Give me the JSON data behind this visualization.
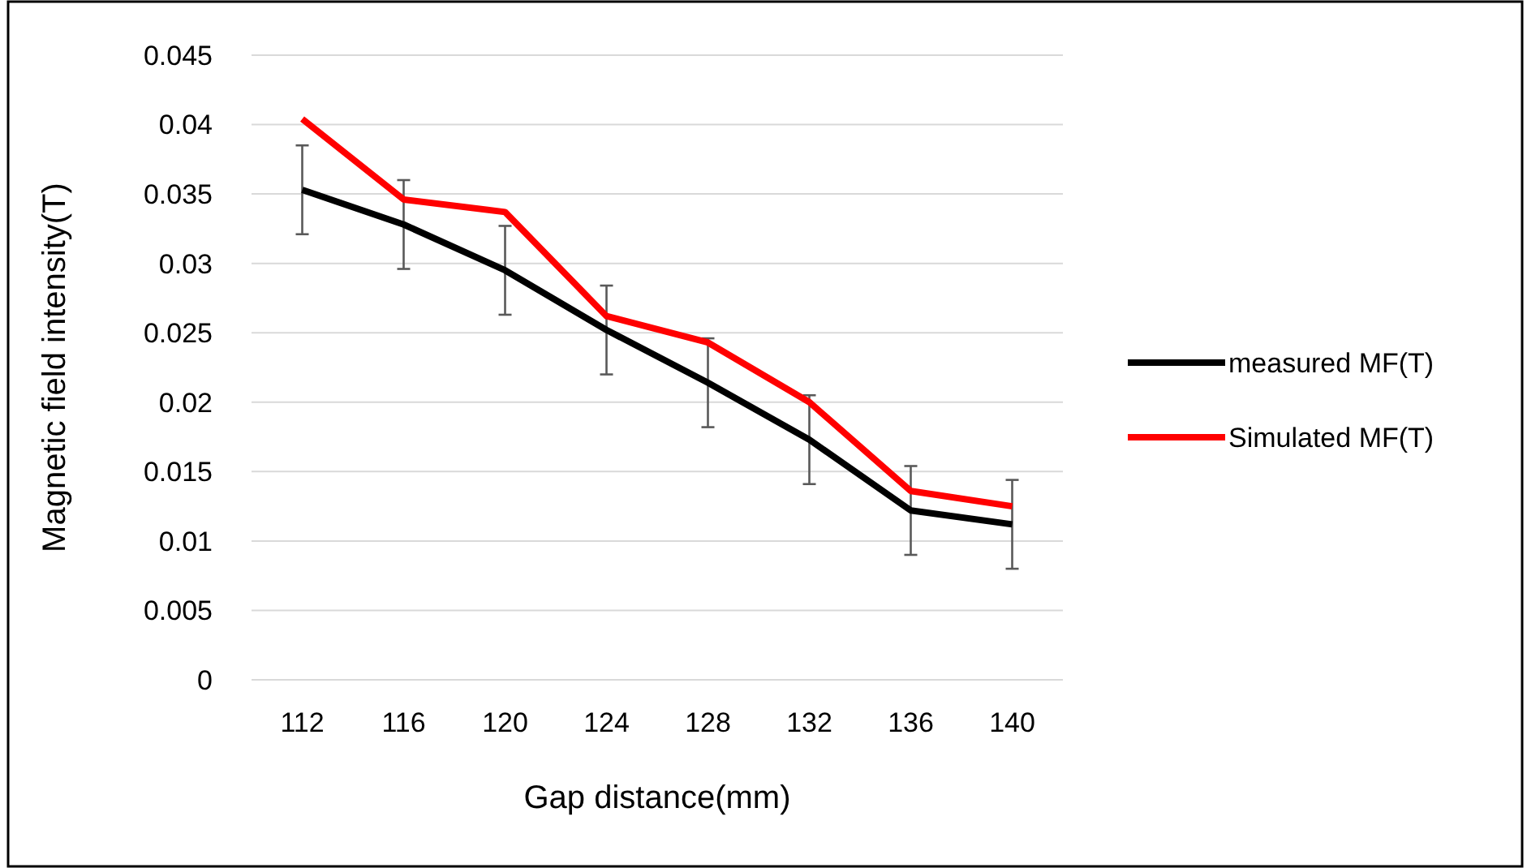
{
  "chart_data": {
    "type": "line",
    "xlabel": "Gap distance(mm)",
    "ylabel": "Magnetic field intensity(T)",
    "categories": [
      "112",
      "116",
      "120",
      "124",
      "128",
      "132",
      "136",
      "140"
    ],
    "series": [
      {
        "name": "measured MF(T)",
        "color": "#000000",
        "values": [
          0.0353,
          0.0328,
          0.0295,
          0.0252,
          0.0214,
          0.0173,
          0.0122,
          0.0112
        ],
        "errors": [
          0.0032,
          0.0032,
          0.0032,
          0.0032,
          0.0032,
          0.0032,
          0.0032,
          0.0032
        ]
      },
      {
        "name": "Simulated MF(T)",
        "color": "#ff0000",
        "values": [
          0.0404,
          0.0346,
          0.0337,
          0.0262,
          0.0243,
          0.02,
          0.0136,
          0.0125
        ]
      }
    ],
    "ylim": [
      0,
      0.045
    ],
    "yticks": [
      0,
      0.005,
      0.01,
      0.015,
      0.02,
      0.025,
      0.03,
      0.035,
      0.04,
      0.045
    ],
    "grid": "y",
    "legend": "right",
    "marker": "none",
    "line_style": "solid"
  }
}
